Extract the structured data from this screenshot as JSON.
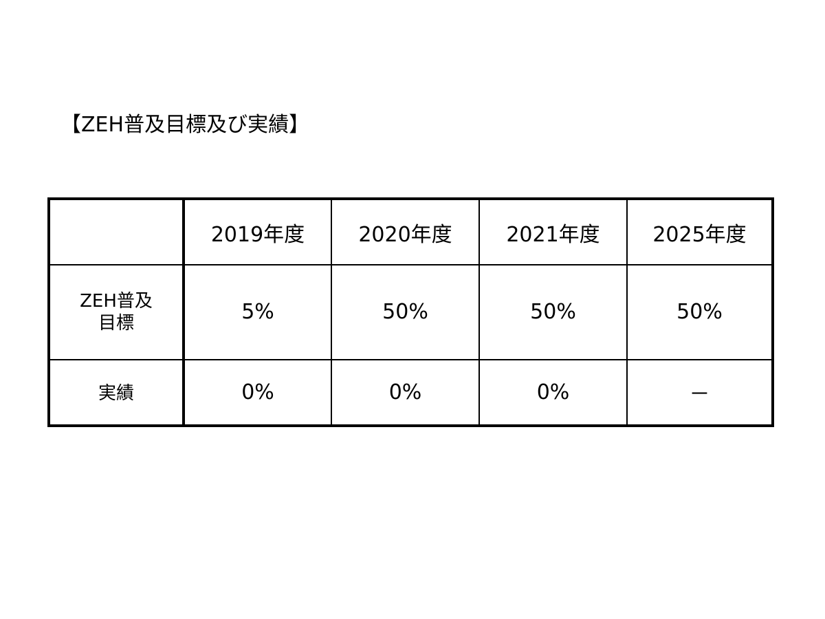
{
  "title": "【ZEH普及目標及び実績】",
  "table": {
    "corner": "",
    "columns": [
      "2019年度",
      "2020年度",
      "2021年度",
      "2025年度"
    ],
    "rows": [
      {
        "label": "ZEH普及目標",
        "values": [
          "5%",
          "50%",
          "50%",
          "50%"
        ]
      },
      {
        "label": "実績",
        "values": [
          "0%",
          "0%",
          "0%",
          "－"
        ]
      }
    ]
  }
}
